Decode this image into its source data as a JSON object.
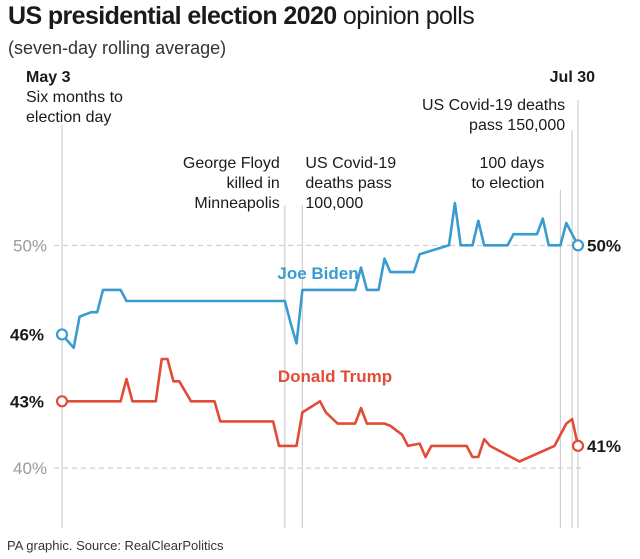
{
  "header": {
    "title_bold": "US presidential election 2020",
    "title_rest": " opinion polls",
    "subtitle": "(seven-day rolling average)"
  },
  "source": "PA graphic. Source: RealClearPolitics",
  "colors": {
    "biden": "#3a9bd0",
    "trump": "#e24b35",
    "grid": "#c8c8c8",
    "axis_label": "#9a9a9a",
    "text": "#1a1a1a"
  },
  "chart_data": {
    "type": "line",
    "title": "US presidential election 2020 opinion polls",
    "subtitle": "(seven-day rolling average)",
    "x_unit": "days since May 3",
    "xlim": [
      0,
      88
    ],
    "ylim": [
      37,
      55.4
    ],
    "y_ticks": [
      {
        "value": 50,
        "label": "50%"
      },
      {
        "value": 40,
        "label": "40%"
      }
    ],
    "events": [
      {
        "day": 0,
        "lines": [
          "May 3",
          "Six months to",
          "election day"
        ],
        "bold_first": true,
        "align": "start"
      },
      {
        "day": 38,
        "lines": [
          "George Floyd",
          "killed in",
          "Minneapolis"
        ],
        "bold_first": false,
        "align": "end"
      },
      {
        "day": 41,
        "lines": [
          "US Covid-19",
          "deaths pass",
          "100,000"
        ],
        "bold_first": false,
        "align": "start"
      },
      {
        "day": 85,
        "lines": [
          "100 days",
          "to election"
        ],
        "bold_first": false,
        "align": "end"
      },
      {
        "day": 87,
        "lines": [
          "US Covid-19 deaths",
          "pass 150,000"
        ],
        "bold_first": false,
        "align": "end"
      },
      {
        "day": 88,
        "lines": [
          "Jul 30"
        ],
        "bold_first": true,
        "align": "end"
      }
    ],
    "series": [
      {
        "name": "Joe Biden",
        "color": "#3a9bd0",
        "start_label": "46%",
        "end_label": "50%",
        "points": [
          [
            0,
            46
          ],
          [
            2,
            45.4
          ],
          [
            3,
            46.8
          ],
          [
            5,
            47
          ],
          [
            6,
            47
          ],
          [
            7,
            48
          ],
          [
            10,
            48
          ],
          [
            11,
            47.5
          ],
          [
            18,
            47.5
          ],
          [
            27,
            47.5
          ],
          [
            38,
            47.5
          ],
          [
            39,
            46.5
          ],
          [
            40,
            45.6
          ],
          [
            41,
            48
          ],
          [
            50,
            48
          ],
          [
            51,
            49
          ],
          [
            52,
            48
          ],
          [
            54,
            48
          ],
          [
            55,
            49.4
          ],
          [
            56,
            48.8
          ],
          [
            60,
            48.8
          ],
          [
            61,
            49.6
          ],
          [
            66,
            50
          ],
          [
            67,
            51.9
          ],
          [
            68,
            50
          ],
          [
            70,
            50
          ],
          [
            71,
            51.1
          ],
          [
            72,
            50
          ],
          [
            76,
            50
          ],
          [
            77,
            50.5
          ],
          [
            81,
            50.5
          ],
          [
            82,
            51.2
          ],
          [
            83,
            50
          ],
          [
            84,
            50
          ],
          [
            85,
            50
          ],
          [
            86,
            51
          ],
          [
            88,
            50
          ]
        ]
      },
      {
        "name": "Donald Trump",
        "color": "#e24b35",
        "start_label": "43%",
        "end_label": "41%",
        "points": [
          [
            0,
            43
          ],
          [
            10,
            43
          ],
          [
            11,
            44
          ],
          [
            12,
            43
          ],
          [
            16,
            43
          ],
          [
            17,
            44.9
          ],
          [
            18,
            44.9
          ],
          [
            19,
            43.9
          ],
          [
            20,
            43.9
          ],
          [
            22,
            43
          ],
          [
            26,
            43
          ],
          [
            27,
            42.1
          ],
          [
            36,
            42.1
          ],
          [
            37,
            41
          ],
          [
            40,
            41
          ],
          [
            41,
            42.5
          ],
          [
            44,
            43
          ],
          [
            45,
            42.5
          ],
          [
            47,
            42
          ],
          [
            48,
            42
          ],
          [
            49,
            42
          ],
          [
            50,
            42
          ],
          [
            51,
            42.7
          ],
          [
            52,
            42
          ],
          [
            55,
            42
          ],
          [
            56,
            41.9
          ],
          [
            57,
            41.7
          ],
          [
            58,
            41.5
          ],
          [
            59,
            41
          ],
          [
            61,
            41.1
          ],
          [
            62,
            40.5
          ],
          [
            63,
            41
          ],
          [
            64,
            41
          ],
          [
            66,
            41
          ],
          [
            67,
            41
          ],
          [
            69,
            41
          ],
          [
            70,
            40.5
          ],
          [
            71,
            40.5
          ],
          [
            72,
            41.3
          ],
          [
            73,
            41
          ],
          [
            78,
            40.3
          ],
          [
            84,
            41
          ],
          [
            86,
            42
          ],
          [
            87,
            42.2
          ],
          [
            88,
            41
          ]
        ]
      }
    ]
  }
}
